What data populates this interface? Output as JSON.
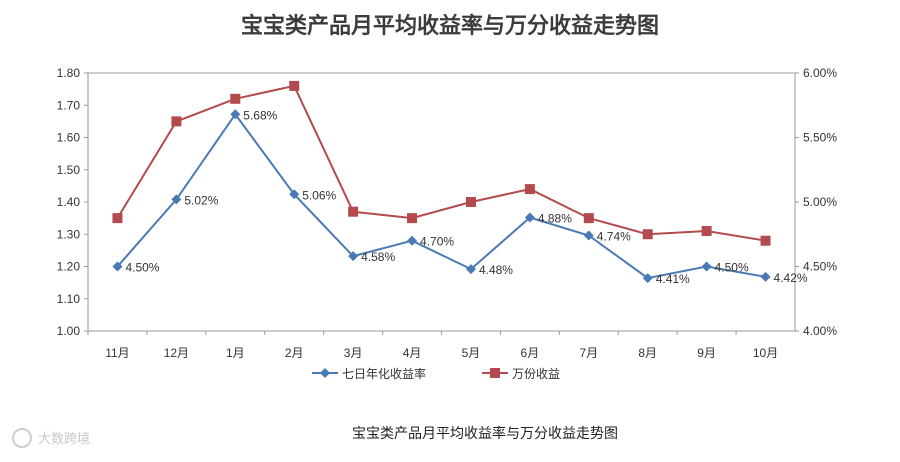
{
  "chart_data": {
    "type": "line",
    "title": "宝宝类产品月平均收益率与万分收益走势图",
    "caption": "宝宝类产品月平均收益率与万分收益走势图",
    "categories": [
      "11月",
      "12月",
      "1月",
      "2月",
      "3月",
      "4月",
      "5月",
      "6月",
      "7月",
      "8月",
      "9月",
      "10月"
    ],
    "y_left": {
      "range": [
        1.0,
        1.8
      ],
      "ticks": [
        "1.00",
        "1.10",
        "1.20",
        "1.30",
        "1.40",
        "1.50",
        "1.60",
        "1.70",
        "1.80"
      ]
    },
    "y_right": {
      "range": [
        4.0,
        6.0
      ],
      "ticks": [
        "4.00%",
        "4.50%",
        "5.00%",
        "5.50%",
        "6.00%"
      ]
    },
    "series": [
      {
        "name": "七日年化收益率",
        "axis": "right",
        "color": "#4a7ab5",
        "marker": "diamond",
        "values": [
          4.5,
          5.02,
          5.68,
          5.06,
          4.58,
          4.7,
          4.48,
          4.88,
          4.74,
          4.41,
          4.5,
          4.42
        ],
        "labels": [
          "4.50%",
          "5.02%",
          "5.68%",
          "5.06%",
          "4.58%",
          "4.70%",
          "4.48%",
          "4.88%",
          "4.74%",
          "4.41%",
          "4.50%",
          "4.42%"
        ]
      },
      {
        "name": "万份收益",
        "axis": "left",
        "color": "#b24a4e",
        "marker": "square",
        "values": [
          1.35,
          1.65,
          1.72,
          1.76,
          1.37,
          1.35,
          1.4,
          1.44,
          1.35,
          1.3,
          1.31,
          1.28
        ]
      }
    ],
    "grid": false,
    "legend": "bottom"
  },
  "watermark": {
    "text": "大数跨境"
  }
}
